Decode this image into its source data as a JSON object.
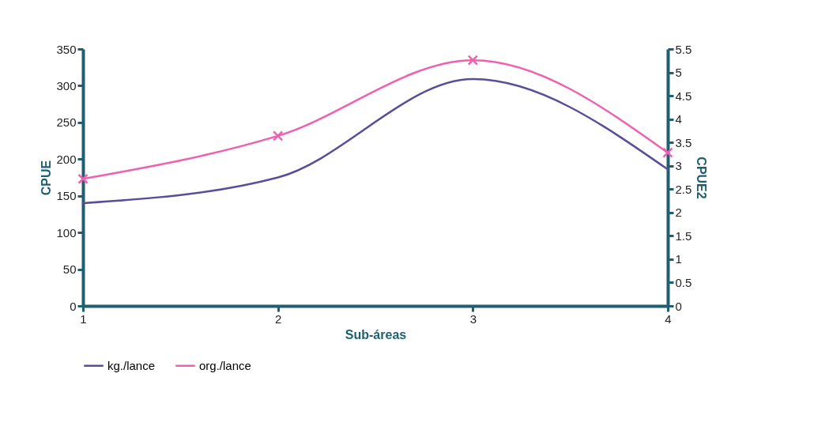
{
  "chart_data": {
    "type": "line",
    "xlabel": "Sub-áreas",
    "ylabel": "CPUE",
    "y2label": "CPUE2",
    "x": [
      1,
      2,
      3,
      4
    ],
    "xlim": [
      1,
      4
    ],
    "xticks": [
      1,
      2,
      3,
      4
    ],
    "ylim": [
      0,
      350
    ],
    "yticks": [
      0,
      50,
      100,
      150,
      200,
      250,
      300,
      350
    ],
    "y2lim": [
      0,
      5.5
    ],
    "y2ticks": [
      0,
      0.5,
      1,
      1.5,
      2,
      2.5,
      3,
      3.5,
      4,
      4.5,
      5,
      5.5
    ],
    "legend": "bottom",
    "grid": false,
    "series": [
      {
        "name": "kg./lance",
        "color": "#5a4e9a",
        "values": [
          140,
          175,
          309,
          186
        ],
        "marker": "none"
      },
      {
        "name": "org./lance",
        "color": "#f060b0",
        "values": [
          2.72,
          3.64,
          5.26,
          3.28
        ],
        "axis": "y2",
        "marker": "cross"
      }
    ]
  }
}
